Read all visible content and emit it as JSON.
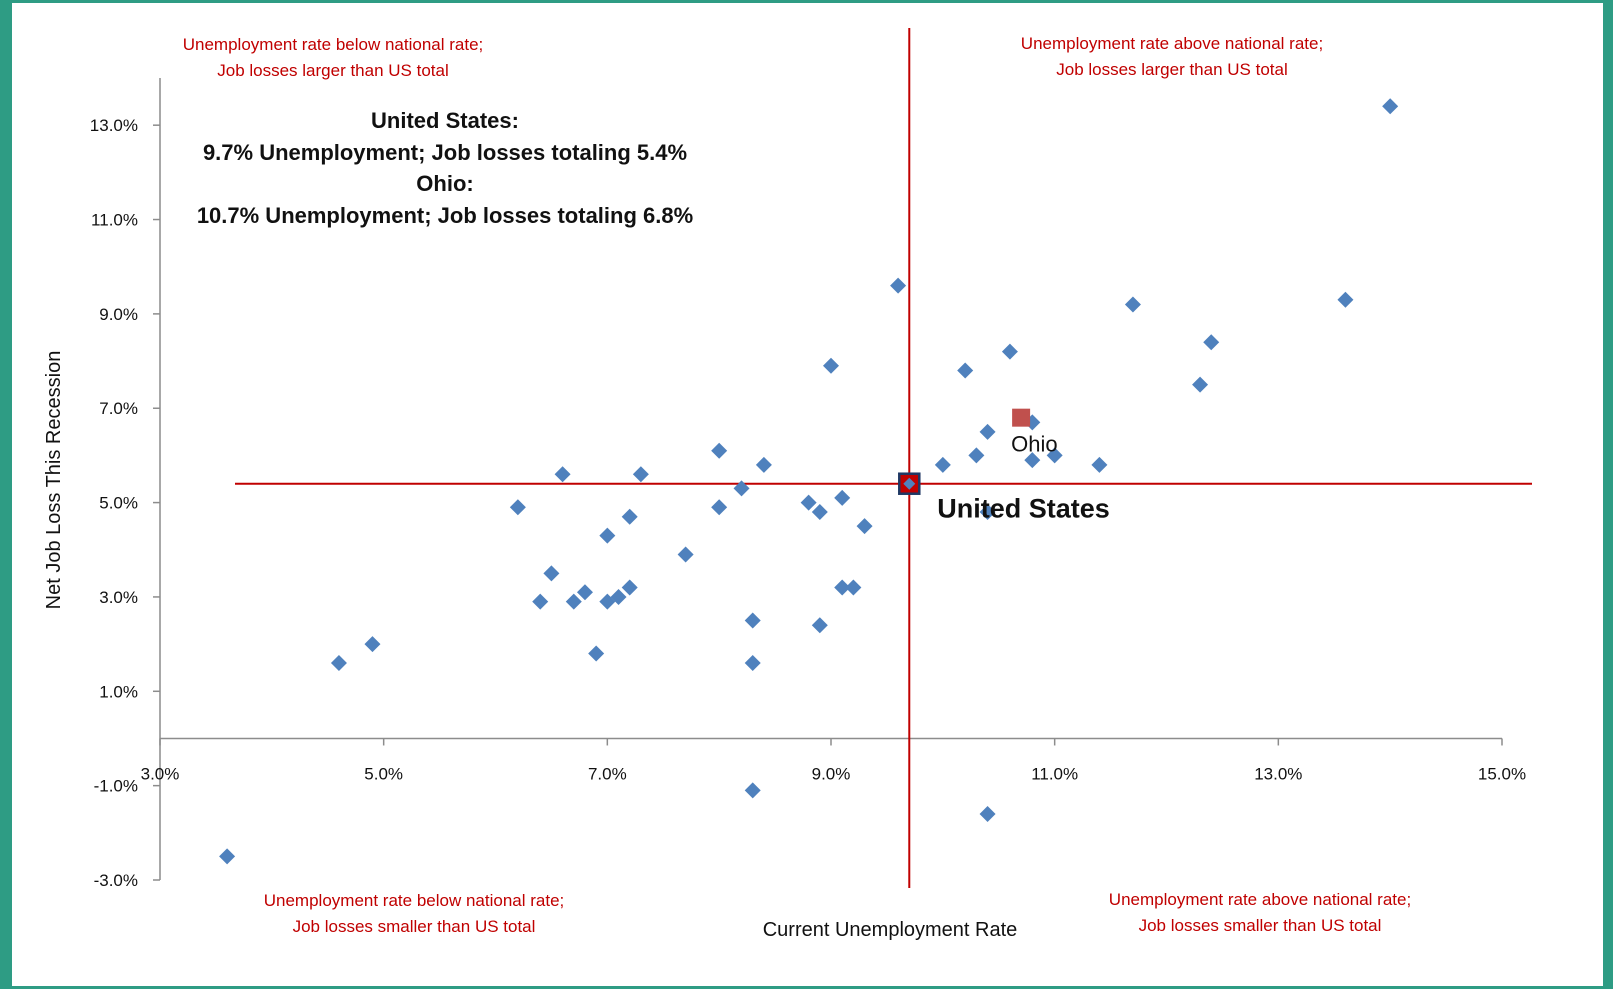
{
  "chart_data": {
    "type": "scatter",
    "xlabel": "Current Unemployment Rate",
    "ylabel": "Net Job Loss This Recession",
    "xlim": [
      3.0,
      15.0
    ],
    "ylim": [
      -3.0,
      14.0
    ],
    "x_ticks": [
      3.0,
      5.0,
      7.0,
      9.0,
      11.0,
      13.0,
      15.0
    ],
    "x_tick_labels": [
      "3.0%",
      "5.0%",
      "7.0%",
      "9.0%",
      "11.0%",
      "13.0%",
      "15.0%"
    ],
    "y_ticks": [
      13.0,
      11.0,
      9.0,
      7.0,
      5.0,
      3.0,
      1.0,
      -1.0,
      -3.0
    ],
    "y_tick_labels": [
      "13.0%",
      "11.0%",
      "9.0%",
      "7.0%",
      "5.0%",
      "3.0%",
      "1.0%",
      "-1.0%",
      "-3.0%"
    ],
    "grid": false,
    "reference_lines": {
      "x": 9.7,
      "y": 5.4
    },
    "colors": {
      "states": "#4f81bd",
      "ohio": "#c0504d",
      "reference": "#c00000",
      "us_outline": "#1f3864"
    },
    "quadrant_labels": {
      "top_left": [
        "Unemployment rate below national rate;",
        "Job losses larger than US total"
      ],
      "top_right": [
        "Unemployment rate above national rate;",
        "Job losses larger than US total"
      ],
      "bottom_left": [
        "Unemployment rate below national rate;",
        "Job losses smaller than US total"
      ],
      "bottom_right": [
        "Unemployment rate above national rate;",
        "Job losses smaller than US total"
      ]
    },
    "info_lines": [
      "United States:",
      "9.7% Unemployment; Job losses totaling 5.4%",
      "Ohio:",
      "10.7% Unemployment; Job losses totaling 6.8%"
    ],
    "highlights": [
      {
        "name": "Ohio",
        "x": 10.7,
        "y": 6.8,
        "label": "Ohio"
      },
      {
        "name": "United States",
        "x": 9.7,
        "y": 5.4,
        "label": "United States"
      }
    ],
    "states": [
      {
        "x": 3.6,
        "y": -2.5
      },
      {
        "x": 4.6,
        "y": 1.6
      },
      {
        "x": 4.9,
        "y": 2.0
      },
      {
        "x": 6.2,
        "y": 4.9
      },
      {
        "x": 6.4,
        "y": 2.9
      },
      {
        "x": 6.5,
        "y": 3.5
      },
      {
        "x": 6.6,
        "y": 5.6
      },
      {
        "x": 6.7,
        "y": 2.9
      },
      {
        "x": 6.8,
        "y": 3.1
      },
      {
        "x": 6.9,
        "y": 1.8
      },
      {
        "x": 7.0,
        "y": 4.3
      },
      {
        "x": 7.0,
        "y": 2.9
      },
      {
        "x": 7.1,
        "y": 3.0
      },
      {
        "x": 7.2,
        "y": 4.7
      },
      {
        "x": 7.2,
        "y": 3.2
      },
      {
        "x": 7.3,
        "y": 5.6
      },
      {
        "x": 7.7,
        "y": 3.9
      },
      {
        "x": 8.0,
        "y": 6.1
      },
      {
        "x": 8.0,
        "y": 4.9
      },
      {
        "x": 8.2,
        "y": 5.3
      },
      {
        "x": 8.3,
        "y": 2.5
      },
      {
        "x": 8.3,
        "y": 1.6
      },
      {
        "x": 8.3,
        "y": -1.1
      },
      {
        "x": 8.4,
        "y": 5.8
      },
      {
        "x": 8.8,
        "y": 5.0
      },
      {
        "x": 8.9,
        "y": 4.8
      },
      {
        "x": 8.9,
        "y": 2.4
      },
      {
        "x": 9.0,
        "y": 7.9
      },
      {
        "x": 9.1,
        "y": 5.1
      },
      {
        "x": 9.1,
        "y": 3.2
      },
      {
        "x": 9.2,
        "y": 3.2
      },
      {
        "x": 9.3,
        "y": 4.5
      },
      {
        "x": 9.6,
        "y": 9.6
      },
      {
        "x": 10.0,
        "y": 5.8
      },
      {
        "x": 10.2,
        "y": 7.8
      },
      {
        "x": 10.3,
        "y": 6.0
      },
      {
        "x": 10.4,
        "y": 6.5
      },
      {
        "x": 10.4,
        "y": 4.8
      },
      {
        "x": 10.4,
        "y": -1.6
      },
      {
        "x": 10.6,
        "y": 8.2
      },
      {
        "x": 10.8,
        "y": 6.7
      },
      {
        "x": 10.8,
        "y": 5.9
      },
      {
        "x": 11.0,
        "y": 6.0
      },
      {
        "x": 11.4,
        "y": 5.8
      },
      {
        "x": 11.7,
        "y": 9.2
      },
      {
        "x": 12.3,
        "y": 7.5
      },
      {
        "x": 12.4,
        "y": 8.4
      },
      {
        "x": 13.6,
        "y": 9.3
      },
      {
        "x": 14.0,
        "y": 13.4
      }
    ]
  }
}
